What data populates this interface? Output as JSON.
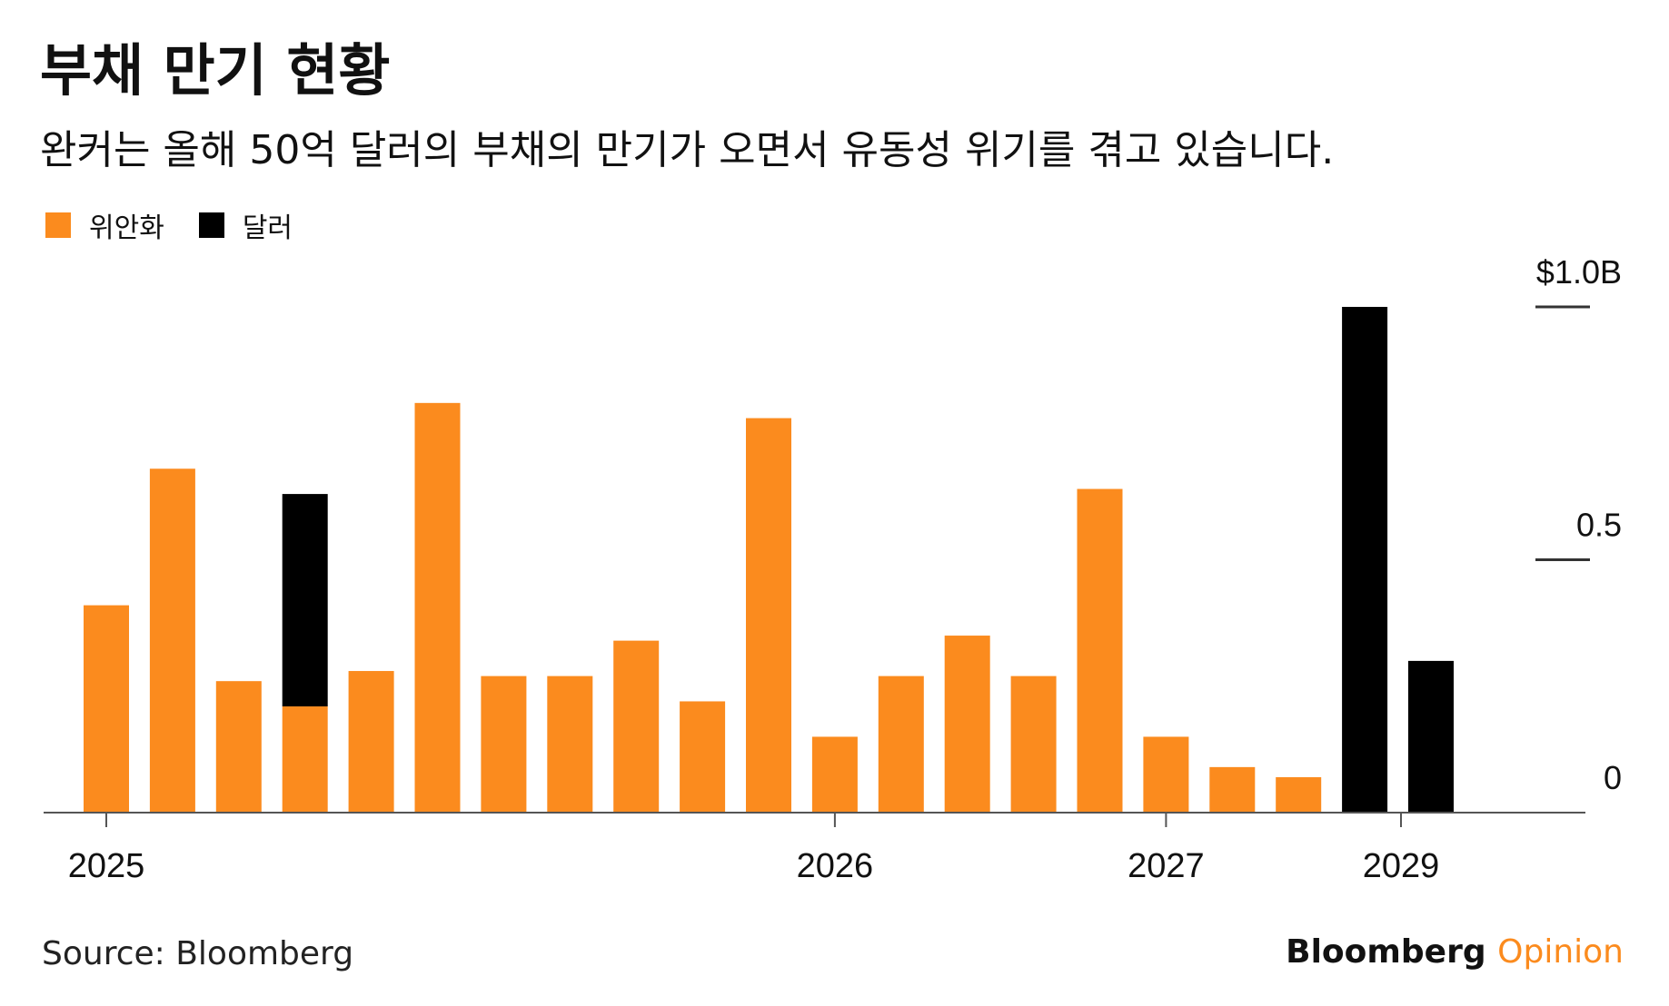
{
  "title": "부채 만기 현황",
  "subtitle": "완커는 올해 50억 달러의 부채의 만기가 오면서 유동성 위기를 겪고 있습니다.",
  "legend": [
    {
      "label": "위안화",
      "color": "#fb8b1e"
    },
    {
      "label": "달러",
      "color": "#000000"
    }
  ],
  "source": "Source: Bloomberg",
  "brand": {
    "name": "Bloomberg",
    "suffix": "Opinion"
  },
  "chart_data": {
    "type": "bar",
    "stacked": true,
    "y_axis": {
      "position": "right",
      "ylim": [
        0,
        1.0
      ],
      "ticks": [
        0,
        0.5,
        1.0
      ],
      "tick_labels": [
        "0",
        "0.5",
        "$1.0B"
      ]
    },
    "x_axis": {
      "labels": [
        "2025",
        "2026",
        "2027",
        "2029"
      ],
      "label_at_bar": [
        0,
        11,
        16,
        20
      ]
    },
    "series": [
      {
        "name": "위안화",
        "color": "#fb8b1e",
        "values": [
          0.41,
          0.68,
          0.26,
          0.21,
          0.28,
          0.81,
          0.27,
          0.27,
          0.34,
          0.22,
          0.78,
          0.15,
          0.27,
          0.35,
          0.27,
          0.64,
          0.15,
          0.09,
          0.07,
          0,
          0
        ]
      },
      {
        "name": "달러",
        "color": "#000000",
        "values": [
          0,
          0,
          0,
          0.42,
          0,
          0,
          0,
          0,
          0,
          0,
          0,
          0,
          0,
          0,
          0,
          0,
          0,
          0,
          0,
          1.0,
          0.3
        ]
      }
    ],
    "grid": false,
    "legend_position": "top-left"
  }
}
